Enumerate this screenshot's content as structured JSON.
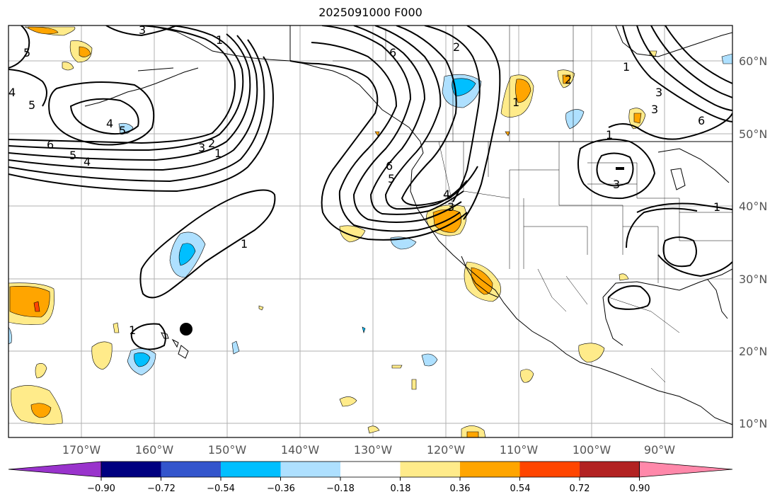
{
  "title": "2025091000 F000",
  "lat_labels": [
    "60°N",
    "50°N",
    "40°N",
    "30°N",
    "20°N",
    "10°N"
  ],
  "lon_labels": [
    "170°W",
    "160°W",
    "150°W",
    "140°W",
    "130°W",
    "120°W",
    "110°W",
    "100°W",
    "90°W"
  ],
  "colorbar": {
    "ticks": [
      "−0.90",
      "−0.72",
      "−0.54",
      "−0.36",
      "−0.18",
      "0.18",
      "0.36",
      "0.54",
      "0.72",
      "0.90"
    ],
    "colors": [
      "#9933cc",
      "#000080",
      "#3355cc",
      "#00bfff",
      "#aee0ff",
      "#ffffff",
      "#ffeb8a",
      "#ffa500",
      "#ff4500",
      "#b22222",
      "#ff88aa"
    ]
  },
  "contour_labels": [
    "1",
    "2",
    "3",
    "4",
    "5",
    "6"
  ],
  "colors": {
    "positive_light": "#ffeb8a",
    "positive_mid": "#ffa500",
    "positive_high": "#ff4500",
    "negative_light": "#aee0ff",
    "negative_mid": "#00bfff",
    "contour": "#000000",
    "grid": "#b0b0b0"
  }
}
